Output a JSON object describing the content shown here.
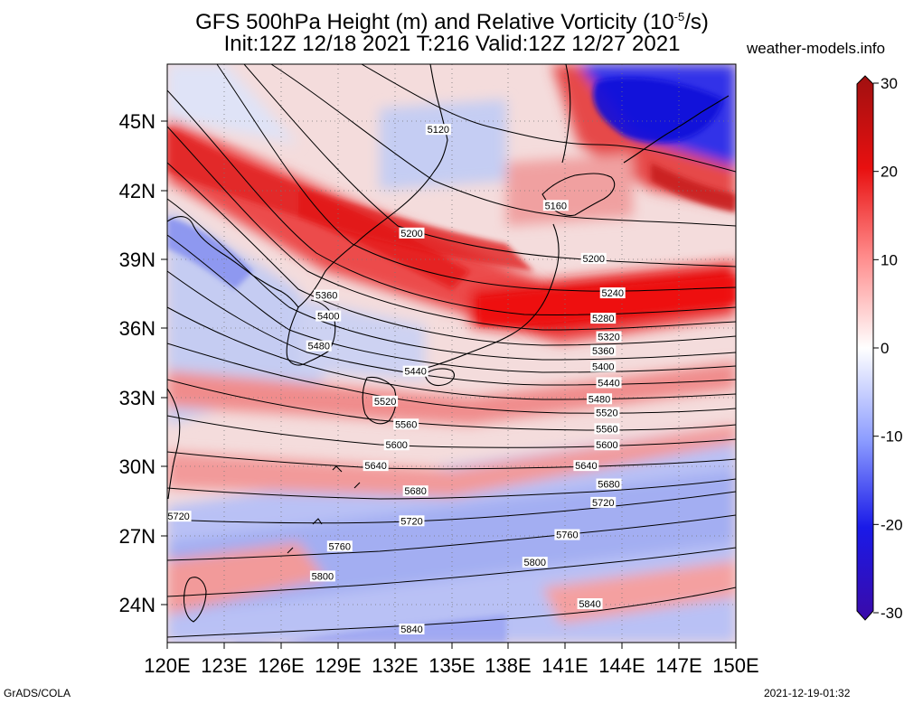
{
  "header": {
    "title_prefix": "GFS 500hPa Height (m) and Relative Vorticity (10",
    "title_exp": "-5",
    "title_suffix": "/s)",
    "subtitle": "Init:12Z 12/18 2021 T:216 Valid:12Z 12/27 2021",
    "site": "weather-models.info"
  },
  "footer": {
    "left": "GrADS/COLA",
    "right": "2021-12-19-01:32"
  },
  "map": {
    "lat_ticks": [
      "45N",
      "42N",
      "39N",
      "36N",
      "33N",
      "30N",
      "27N",
      "24N"
    ],
    "lon_ticks": [
      "120E",
      "123E",
      "126E",
      "129E",
      "132E",
      "135E",
      "138E",
      "141E",
      "144E",
      "147E",
      "150E"
    ],
    "contour_labels": [
      {
        "text": "5120",
        "lon": 134.3,
        "lat": 44.6
      },
      {
        "text": "5160",
        "lon": 140.5,
        "lat": 41.3
      },
      {
        "text": "5200",
        "lon": 132.9,
        "lat": 40.1
      },
      {
        "text": "5200",
        "lon": 142.5,
        "lat": 39.0
      },
      {
        "text": "5240",
        "lon": 143.5,
        "lat": 37.5
      },
      {
        "text": "5280",
        "lon": 143.0,
        "lat": 36.4
      },
      {
        "text": "5320",
        "lon": 143.3,
        "lat": 35.6
      },
      {
        "text": "5360",
        "lon": 128.4,
        "lat": 37.4
      },
      {
        "text": "5360",
        "lon": 143.0,
        "lat": 35.0
      },
      {
        "text": "5400",
        "lon": 128.5,
        "lat": 36.5
      },
      {
        "text": "5400",
        "lon": 143.0,
        "lat": 34.3
      },
      {
        "text": "5440",
        "lon": 133.1,
        "lat": 34.1
      },
      {
        "text": "5440",
        "lon": 143.3,
        "lat": 33.6
      },
      {
        "text": "5480",
        "lon": 128.0,
        "lat": 35.2
      },
      {
        "text": "5480",
        "lon": 142.8,
        "lat": 32.9
      },
      {
        "text": "5520",
        "lon": 131.5,
        "lat": 32.8
      },
      {
        "text": "5520",
        "lon": 143.2,
        "lat": 32.3
      },
      {
        "text": "5560",
        "lon": 132.6,
        "lat": 31.8
      },
      {
        "text": "5560",
        "lon": 143.2,
        "lat": 31.6
      },
      {
        "text": "5600",
        "lon": 132.1,
        "lat": 30.9
      },
      {
        "text": "5600",
        "lon": 143.2,
        "lat": 30.9
      },
      {
        "text": "5640",
        "lon": 131.0,
        "lat": 30.0
      },
      {
        "text": "5640",
        "lon": 142.1,
        "lat": 30.0
      },
      {
        "text": "5680",
        "lon": 133.1,
        "lat": 28.9
      },
      {
        "text": "5680",
        "lon": 143.3,
        "lat": 29.2
      },
      {
        "text": "5720",
        "lon": 120.6,
        "lat": 27.8
      },
      {
        "text": "5720",
        "lon": 132.9,
        "lat": 27.6
      },
      {
        "text": "5720",
        "lon": 143.0,
        "lat": 28.4
      },
      {
        "text": "5760",
        "lon": 129.1,
        "lat": 26.5
      },
      {
        "text": "5760",
        "lon": 141.1,
        "lat": 27.0
      },
      {
        "text": "5800",
        "lon": 128.2,
        "lat": 25.2
      },
      {
        "text": "5800",
        "lon": 139.4,
        "lat": 25.8
      },
      {
        "text": "5840",
        "lon": 132.9,
        "lat": 22.9
      },
      {
        "text": "5840",
        "lon": 142.3,
        "lat": 24.0
      }
    ]
  },
  "colorbar": {
    "ticks": [
      {
        "label": "30",
        "value": 30
      },
      {
        "label": "20",
        "value": 20
      },
      {
        "label": "10",
        "value": 10
      },
      {
        "label": "0",
        "value": 0
      },
      {
        "label": "-10",
        "value": -10
      },
      {
        "label": "-20",
        "value": -20
      },
      {
        "label": "-30",
        "value": -30
      }
    ]
  },
  "colors": {
    "strong_pos": "#e80000",
    "pos": "#ff7a7a",
    "neutral": "#ffffff",
    "neg": "#7d8cff",
    "strong_neg": "#1010e8",
    "contour": "#000000",
    "coast": "#000000"
  }
}
